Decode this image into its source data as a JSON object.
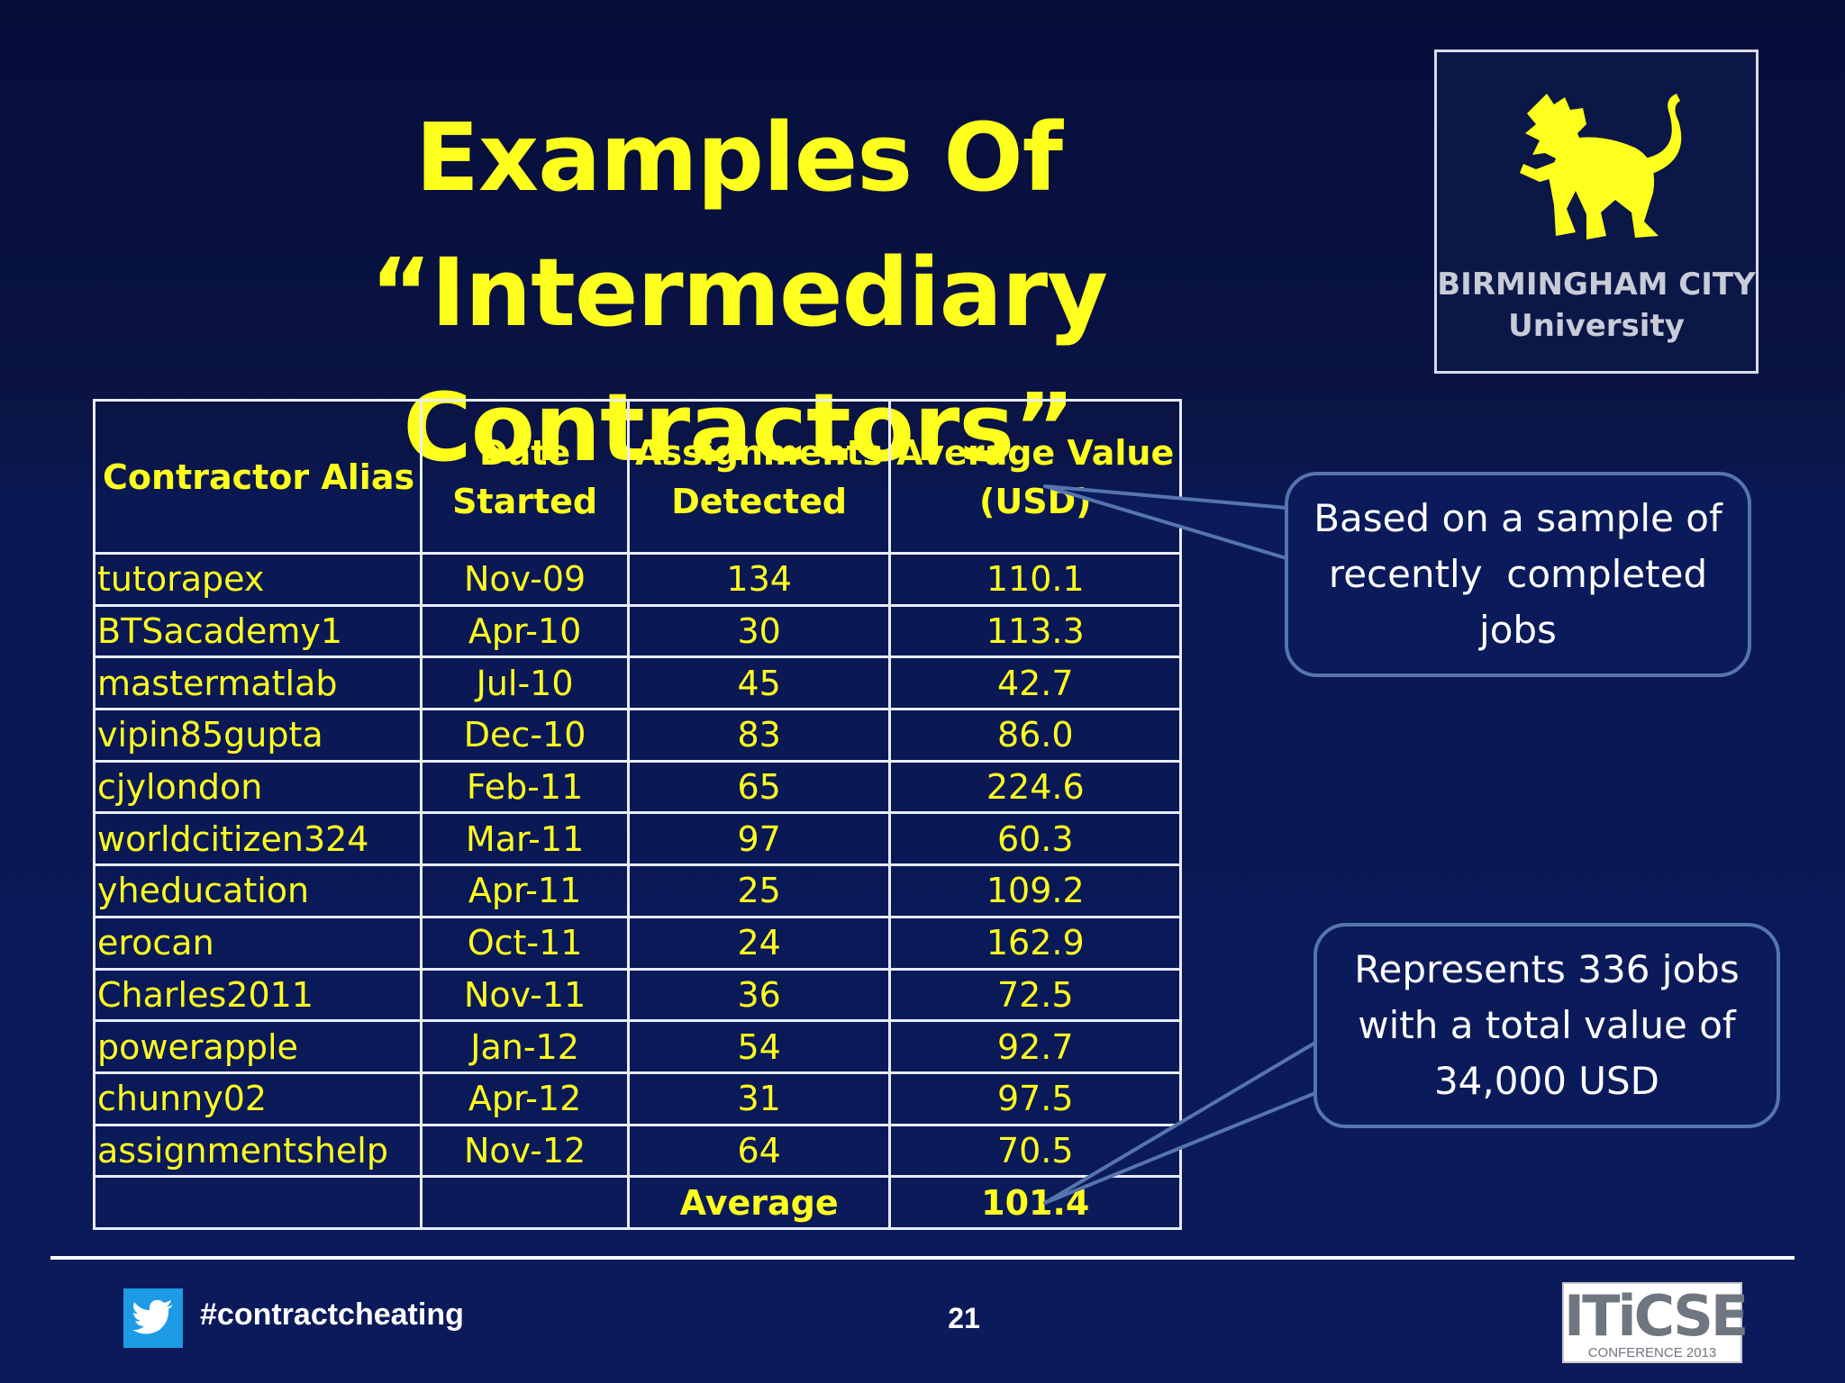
{
  "slide": {
    "title_line1": "Examples Of “Intermediary",
    "title_line2": "Contractors”"
  },
  "logo": {
    "line1": "BIRMINGHAM CITY",
    "line2": "University",
    "emblem": "lion-icon",
    "color": "#ffff1e"
  },
  "table": {
    "headers": {
      "alias": "Contractor Alias",
      "date_l1": "Date",
      "date_l2": "Started",
      "assign_l1": "Assignments",
      "assign_l2": "Detected",
      "value_l1": "Average Value",
      "value_l2": "(USD)"
    },
    "rows": [
      {
        "alias": "tutorapex",
        "date": "Nov-09",
        "assignments": "134",
        "value": "110.1"
      },
      {
        "alias": "BTSacademy1",
        "date": "Apr-10",
        "assignments": "30",
        "value": "113.3"
      },
      {
        "alias": "mastermatlab",
        "date": "Jul-10",
        "assignments": "45",
        "value": "42.7"
      },
      {
        "alias": "vipin85gupta",
        "date": "Dec-10",
        "assignments": "83",
        "value": "86.0"
      },
      {
        "alias": "cjylondon",
        "date": "Feb-11",
        "assignments": "65",
        "value": "224.6"
      },
      {
        "alias": "worldcitizen324",
        "date": "Mar-11",
        "assignments": "97",
        "value": "60.3"
      },
      {
        "alias": "yheducation",
        "date": "Apr-11",
        "assignments": "25",
        "value": "109.2"
      },
      {
        "alias": "erocan",
        "date": "Oct-11",
        "assignments": "24",
        "value": "162.9"
      },
      {
        "alias": "Charles2011",
        "date": "Nov-11",
        "assignments": "36",
        "value": "72.5"
      },
      {
        "alias": "powerapple",
        "date": "Jan-12",
        "assignments": "54",
        "value": "92.7"
      },
      {
        "alias": "chunny02",
        "date": "Apr-12",
        "assignments": "31",
        "value": "97.5"
      },
      {
        "alias": "assignmentshelp",
        "date": "Nov-12",
        "assignments": "64",
        "value": "70.5"
      }
    ],
    "footer": {
      "label": "Average",
      "value": "101.4"
    }
  },
  "callouts": {
    "sample_l1": "Based on a sample of",
    "sample_l2": "recently  completed",
    "sample_l3": "jobs",
    "total_l1": "Represents 336 jobs",
    "total_l2": "with a total value of",
    "total_l3": "34,000 USD"
  },
  "footer": {
    "hashtag": "#contractcheating",
    "twitter_icon": "twitter-icon",
    "page_number": "21",
    "conference_logo_big": "ITiCSE",
    "conference_logo_small": "CONFERENCE 2013"
  },
  "colors": {
    "background": "#0a1854",
    "title": "#ffff1e",
    "callout_border": "#5575ad"
  }
}
